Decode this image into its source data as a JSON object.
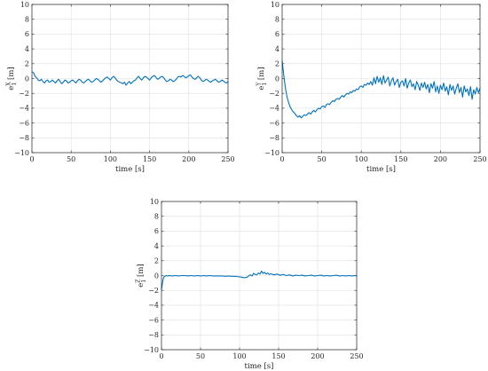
{
  "chart_data": [
    {
      "type": "line",
      "xlabel": "time [s]",
      "ylabel": {
        "base": "e",
        "sup": "X",
        "sub": "1",
        "unit": " [m]"
      },
      "xlim": [
        0,
        250
      ],
      "ylim": [
        -10,
        10
      ],
      "xticks": [
        0,
        50,
        100,
        150,
        200,
        250
      ],
      "yticks": [
        -10,
        -8,
        -6,
        -4,
        -2,
        0,
        2,
        4,
        6,
        8,
        10
      ],
      "grid": true,
      "color": "#0072BD",
      "series": [
        {
          "x": [
            0,
            2,
            4,
            6,
            8,
            10,
            12,
            14,
            16,
            18,
            20,
            22,
            24,
            26,
            28,
            30,
            32,
            34,
            36,
            38,
            40,
            42,
            44,
            46,
            48,
            50,
            52,
            54,
            56,
            58,
            60,
            62,
            64,
            66,
            68,
            70,
            72,
            74,
            76,
            78,
            80,
            82,
            84,
            86,
            88,
            90,
            92,
            94,
            96,
            98,
            100,
            102,
            104,
            106,
            108,
            110,
            112,
            114,
            116,
            118,
            120,
            122,
            124,
            126,
            128,
            130,
            132,
            134,
            136,
            138,
            140,
            142,
            144,
            146,
            148,
            150,
            152,
            154,
            156,
            158,
            160,
            162,
            164,
            166,
            168,
            170,
            172,
            174,
            176,
            178,
            180,
            182,
            184,
            186,
            188,
            190,
            192,
            194,
            196,
            198,
            200,
            202,
            204,
            206,
            208,
            210,
            212,
            214,
            216,
            218,
            220,
            222,
            224,
            226,
            228,
            230,
            232,
            234,
            236,
            238,
            240,
            242,
            244,
            246,
            248,
            250
          ],
          "y": [
            0.9,
            0.8,
            0.3,
            0.1,
            -0.2,
            -0.3,
            -0.1,
            -0.4,
            -0.6,
            -0.3,
            -0.2,
            -0.5,
            -0.4,
            -0.2,
            -0.4,
            -0.6,
            -0.3,
            -0.1,
            -0.4,
            -0.7,
            -0.5,
            -0.2,
            -0.3,
            -0.6,
            -0.5,
            -0.3,
            -0.2,
            -0.4,
            -0.6,
            -0.3,
            -0.1,
            -0.2,
            -0.5,
            -0.6,
            -0.4,
            -0.2,
            -0.1,
            -0.3,
            -0.5,
            -0.4,
            -0.2,
            0.0,
            -0.1,
            -0.3,
            -0.5,
            -0.3,
            -0.1,
            0.1,
            0.2,
            0.0,
            -0.2,
            0.1,
            0.3,
            0.1,
            -0.2,
            -0.4,
            -0.5,
            -0.6,
            -0.7,
            -0.5,
            -0.9,
            -0.6,
            -0.4,
            -0.7,
            -0.5,
            -0.3,
            -0.2,
            0.1,
            0.3,
            0.0,
            -0.2,
            0.1,
            0.3,
            0.2,
            0.0,
            -0.2,
            0.1,
            0.3,
            0.4,
            0.2,
            -0.1,
            0.0,
            0.2,
            0.3,
            0.1,
            -0.2,
            -0.4,
            -0.3,
            -0.1,
            -0.2,
            -0.4,
            -0.3,
            -0.1,
            0.2,
            0.3,
            0.2,
            0.4,
            0.3,
            0.1,
            0.2,
            0.4,
            0.5,
            0.2,
            0.0,
            -0.1,
            0.1,
            0.3,
            0.1,
            -0.2,
            -0.4,
            -0.3,
            -0.1,
            -0.2,
            -0.4,
            -0.5,
            -0.3,
            -0.2,
            -0.1,
            -0.3,
            -0.5,
            -0.4,
            -0.2,
            -0.3,
            -0.5,
            -0.6,
            -0.4
          ]
        }
      ]
    },
    {
      "type": "line",
      "xlabel": "time [s]",
      "ylabel": {
        "base": "e",
        "sup": "Y",
        "sub": "1",
        "unit": " [m]"
      },
      "xlim": [
        0,
        250
      ],
      "ylim": [
        -10,
        10
      ],
      "xticks": [
        0,
        50,
        100,
        150,
        200,
        250
      ],
      "yticks": [
        -10,
        -8,
        -6,
        -4,
        -2,
        0,
        2,
        4,
        6,
        8,
        10
      ],
      "grid": true,
      "color": "#0072BD",
      "series": [
        {
          "x": [
            0,
            2,
            4,
            6,
            8,
            10,
            12,
            14,
            16,
            18,
            20,
            22,
            24,
            26,
            28,
            30,
            32,
            34,
            36,
            38,
            40,
            42,
            44,
            46,
            48,
            50,
            52,
            54,
            56,
            58,
            60,
            62,
            64,
            66,
            68,
            70,
            72,
            74,
            76,
            78,
            80,
            82,
            84,
            86,
            88,
            90,
            92,
            94,
            96,
            98,
            100,
            102,
            104,
            106,
            108,
            110,
            112,
            114,
            116,
            118,
            120,
            122,
            124,
            126,
            128,
            130,
            132,
            134,
            136,
            138,
            140,
            142,
            144,
            146,
            148,
            150,
            152,
            154,
            156,
            158,
            160,
            162,
            164,
            166,
            168,
            170,
            172,
            174,
            176,
            178,
            180,
            182,
            184,
            186,
            188,
            190,
            192,
            194,
            196,
            198,
            200,
            202,
            204,
            206,
            208,
            210,
            212,
            214,
            216,
            218,
            220,
            222,
            224,
            226,
            228,
            230,
            232,
            234,
            236,
            238,
            240,
            242,
            244,
            246,
            248,
            250
          ],
          "y": [
            2.4,
            0.5,
            -1.2,
            -2.4,
            -3.2,
            -3.8,
            -4.2,
            -4.5,
            -4.7,
            -5.0,
            -5.2,
            -5.0,
            -5.3,
            -5.1,
            -4.9,
            -5.0,
            -4.8,
            -4.6,
            -4.8,
            -4.5,
            -4.3,
            -4.5,
            -4.2,
            -4.0,
            -4.1,
            -3.8,
            -3.7,
            -3.9,
            -3.5,
            -3.4,
            -3.5,
            -3.2,
            -3.0,
            -3.1,
            -2.8,
            -2.7,
            -2.8,
            -2.5,
            -2.3,
            -2.5,
            -2.2,
            -2.0,
            -2.1,
            -1.8,
            -1.9,
            -1.6,
            -1.7,
            -1.4,
            -1.5,
            -1.1,
            -1.0,
            -1.2,
            -0.8,
            -0.9,
            -0.6,
            -0.8,
            -0.4,
            -0.9,
            0.1,
            -0.7,
            0.3,
            -0.5,
            0.1,
            -0.8,
            0.4,
            -0.6,
            -0.2,
            0.2,
            -1.0,
            -0.3,
            0.1,
            -0.9,
            -0.4,
            -0.1,
            -1.2,
            -0.5,
            -0.3,
            -1.0,
            0.0,
            -1.3,
            -0.6,
            -0.2,
            -1.1,
            -0.7,
            -1.5,
            -0.4,
            -0.9,
            -1.6,
            -0.6,
            -1.2,
            -0.5,
            -1.4,
            -0.8,
            -1.9,
            -0.7,
            -1.3,
            -0.4,
            -1.8,
            -1.0,
            -2.0,
            -0.9,
            -1.5,
            -0.6,
            -1.7,
            -1.1,
            -2.2,
            -0.8,
            -1.6,
            -1.0,
            -2.1,
            -1.3,
            -0.7,
            -1.9,
            -1.2,
            -2.5,
            -1.0,
            -1.8,
            -1.4,
            -2.3,
            -1.1,
            -2.8,
            -1.5,
            -2.1,
            -1.2,
            -1.9,
            -1.3
          ]
        }
      ]
    },
    {
      "type": "line",
      "xlabel": "time [s]",
      "ylabel": {
        "base": "e",
        "sup": "Z",
        "sub": "1",
        "unit": " [m]"
      },
      "xlim": [
        0,
        250
      ],
      "ylim": [
        -10,
        10
      ],
      "xticks": [
        0,
        50,
        100,
        150,
        200,
        250
      ],
      "yticks": [
        -10,
        -8,
        -6,
        -4,
        -2,
        0,
        2,
        4,
        6,
        8,
        10
      ],
      "grid": true,
      "color": "#0072BD",
      "series": [
        {
          "x": [
            0,
            1,
            2,
            3,
            4,
            6,
            8,
            10,
            14,
            18,
            22,
            26,
            30,
            34,
            38,
            42,
            46,
            50,
            54,
            58,
            62,
            66,
            70,
            74,
            78,
            82,
            86,
            90,
            94,
            98,
            102,
            104,
            106,
            108,
            110,
            112,
            114,
            116,
            118,
            120,
            122,
            124,
            126,
            128,
            130,
            132,
            134,
            136,
            138,
            140,
            144,
            148,
            152,
            156,
            160,
            164,
            168,
            172,
            176,
            180,
            184,
            188,
            192,
            196,
            200,
            204,
            208,
            212,
            216,
            220,
            224,
            228,
            232,
            236,
            240,
            244,
            248,
            250
          ],
          "y": [
            -1.9,
            -1.2,
            -0.5,
            -0.2,
            -0.1,
            0.0,
            -0.05,
            0.0,
            -0.05,
            0.0,
            -0.05,
            0.0,
            0.0,
            -0.05,
            0.0,
            -0.05,
            0.0,
            -0.05,
            0.0,
            -0.05,
            0.0,
            -0.05,
            -0.05,
            -0.05,
            -0.05,
            -0.1,
            -0.05,
            -0.1,
            -0.1,
            -0.15,
            -0.2,
            -0.25,
            -0.3,
            -0.25,
            -0.2,
            0.0,
            0.1,
            -0.05,
            0.3,
            0.15,
            0.1,
            0.35,
            0.2,
            0.6,
            0.3,
            0.45,
            0.2,
            0.35,
            0.15,
            0.25,
            0.1,
            0.2,
            0.05,
            0.15,
            0.0,
            0.1,
            -0.05,
            0.05,
            0.0,
            0.05,
            -0.05,
            0.0,
            0.05,
            -0.05,
            0.0,
            0.05,
            -0.05,
            0.0,
            -0.05,
            0.0,
            0.05,
            -0.05,
            0.0,
            -0.05,
            0.0,
            -0.05,
            0.0,
            -0.05
          ]
        }
      ]
    }
  ]
}
